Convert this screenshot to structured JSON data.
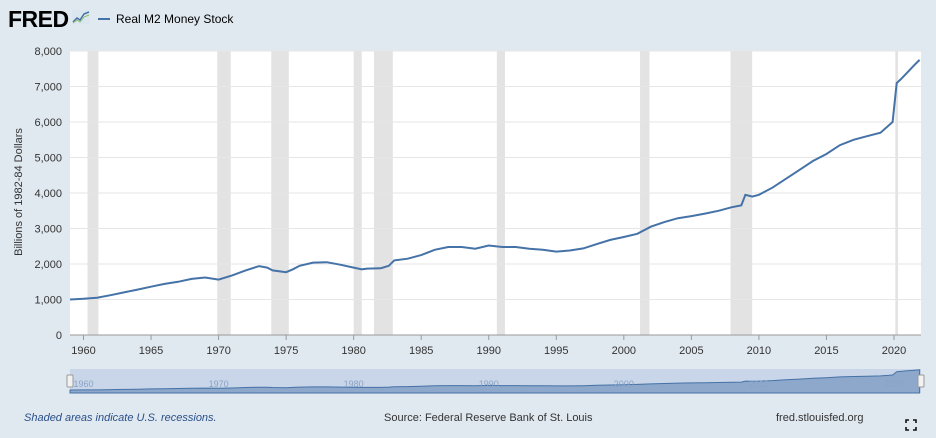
{
  "header": {
    "logo_text": "FRED",
    "logo_icon": "fred-chart-icon",
    "legend_label": "Real M2 Money Stock",
    "series_color": "#4572a7"
  },
  "footer": {
    "recession_note": "Shaded areas indicate U.S. recessions.",
    "source": "Source: Federal Reserve Bank of St. Louis",
    "site": "fred.stlouisfed.org",
    "fullscreen_icon": "fullscreen-icon"
  },
  "chart_data": {
    "type": "line",
    "ylabel": "Billions of 1982-84 Dollars",
    "xlim": [
      1959,
      2022
    ],
    "ylim": [
      0,
      8000
    ],
    "x_ticks": [
      "1960",
      "1965",
      "1970",
      "1975",
      "1980",
      "1985",
      "1990",
      "1995",
      "2000",
      "2005",
      "2010",
      "2015",
      "2020"
    ],
    "y_ticks": [
      "0",
      "1,000",
      "2,000",
      "3,000",
      "4,000",
      "5,000",
      "6,000",
      "7,000",
      "8,000"
    ],
    "grid": true,
    "legend": "top-left",
    "recessions": [
      [
        1960.3,
        1961.1
      ],
      [
        1969.9,
        1970.9
      ],
      [
        1973.9,
        1975.2
      ],
      [
        1980.0,
        1980.6
      ],
      [
        1981.5,
        1982.9
      ],
      [
        1990.6,
        1991.2
      ],
      [
        2001.2,
        2001.9
      ],
      [
        2007.9,
        2009.5
      ],
      [
        2020.1,
        2020.3
      ]
    ],
    "navigator_labels": [
      "1960",
      "1970",
      "1980",
      "1990",
      "2000",
      "2010",
      "2020"
    ],
    "series": [
      {
        "name": "Real M2 Money Stock",
        "x": [
          1959,
          1960,
          1961,
          1962,
          1963,
          1964,
          1965,
          1966,
          1967,
          1968,
          1969,
          1970,
          1971,
          1972,
          1973,
          1973.6,
          1974,
          1975,
          1975.5,
          1976,
          1977,
          1978,
          1979,
          1980,
          1980.6,
          1981,
          1982,
          1982.6,
          1983,
          1984,
          1985,
          1986,
          1987,
          1988,
          1989,
          1990,
          1991,
          1992,
          1993,
          1994,
          1995,
          1996,
          1997,
          1998,
          1999,
          2000,
          2001,
          2002,
          2003,
          2004,
          2005,
          2006,
          2007,
          2008,
          2008.7,
          2009,
          2009.5,
          2010,
          2011,
          2012,
          2013,
          2014,
          2015,
          2016,
          2017,
          2018,
          2019,
          2019.9,
          2020.2,
          2020.5,
          2021,
          2021.5,
          2021.9
        ],
        "values": [
          1000,
          1020,
          1050,
          1120,
          1200,
          1280,
          1360,
          1440,
          1500,
          1580,
          1620,
          1560,
          1680,
          1820,
          1940,
          1900,
          1820,
          1770,
          1850,
          1950,
          2040,
          2050,
          1980,
          1900,
          1850,
          1870,
          1880,
          1950,
          2100,
          2150,
          2250,
          2400,
          2480,
          2480,
          2430,
          2520,
          2480,
          2480,
          2430,
          2400,
          2350,
          2380,
          2440,
          2560,
          2680,
          2760,
          2850,
          3050,
          3180,
          3290,
          3350,
          3420,
          3500,
          3600,
          3650,
          3950,
          3900,
          3950,
          4150,
          4400,
          4650,
          4900,
          5100,
          5350,
          5500,
          5600,
          5700,
          6000,
          7100,
          7200,
          7400,
          7600,
          7750
        ]
      }
    ]
  }
}
